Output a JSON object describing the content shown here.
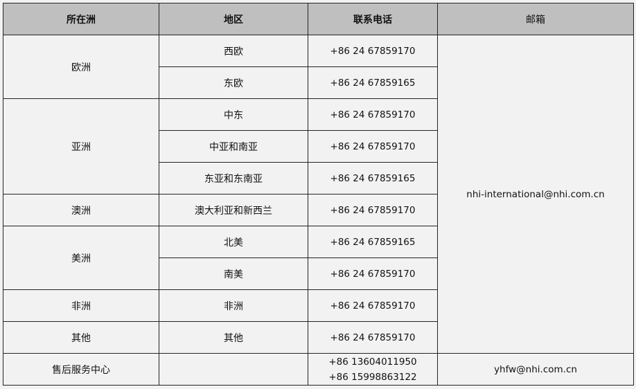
{
  "headers": [
    "所在洲",
    "地区",
    "联系电话",
    "邮箱"
  ],
  "groups": [
    {
      "continent": "欧洲",
      "regions": [
        {
          "name": "西欧",
          "phone": "+86 24 67859170"
        },
        {
          "name": "东欧",
          "phone": "+86 24 67859165"
        }
      ]
    },
    {
      "continent": "亚洲",
      "regions": [
        {
          "name": "中东",
          "phone": "+86 24 67859170"
        },
        {
          "name": "中亚和南亚",
          "phone": "+86 24 67859170"
        },
        {
          "name": "东亚和东南亚",
          "phone": "+86 24 67859165"
        }
      ]
    },
    {
      "continent": "澳洲",
      "regions": [
        {
          "name": "澳大利亚和新西兰",
          "phone": "+86 24 67859170"
        }
      ]
    },
    {
      "continent": "美洲",
      "regions": [
        {
          "name": "北美",
          "phone": "+86 24 67859165"
        },
        {
          "name": "南美",
          "phone": "+86 24 67859170"
        }
      ]
    },
    {
      "continent": "非洲",
      "regions": [
        {
          "name": "非洲",
          "phone": "+86 24 67859170"
        }
      ]
    },
    {
      "continent": "其他",
      "regions": [
        {
          "name": "其他",
          "phone": "+86 24 67859170"
        }
      ]
    }
  ],
  "international_email": "nhi-international@nhi.com.cn",
  "after_sales": {
    "label": "售后服务中心",
    "region": "",
    "phones": [
      "+86 13604011950",
      "+86 15998863122"
    ],
    "email": "yhfw@nhi.com.cn"
  },
  "colors": {
    "header_bg": "#bfbfbf",
    "cell_bg": "#f2f2f2",
    "border": "#222222"
  }
}
